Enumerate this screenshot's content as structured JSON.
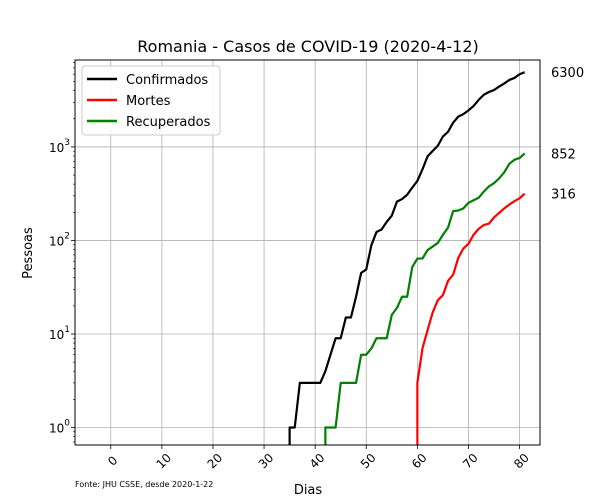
{
  "chart_data": {
    "type": "line",
    "title": "Romania - Casos de COVID-19 (2020-4-12)",
    "xlabel": "Dias",
    "ylabel": "Pessoas",
    "yscale": "log",
    "xlim": [
      -7,
      84
    ],
    "ylim": [
      0.65,
      8500
    ],
    "grid": true,
    "legend_position": "top-left",
    "footnote": "Fonte: JHU CSSE, desde 2020-1-22",
    "x_ticks": [
      0,
      10,
      20,
      30,
      40,
      50,
      60,
      70,
      80
    ],
    "y_ticks": [
      {
        "value": 1,
        "base": "10",
        "exp": "0"
      },
      {
        "value": 10,
        "base": "10",
        "exp": "1"
      },
      {
        "value": 100,
        "base": "10",
        "exp": "2"
      },
      {
        "value": 1000,
        "base": "10",
        "exp": "3"
      }
    ],
    "end_labels": [
      {
        "text": "6300",
        "value": 6300
      },
      {
        "text": "852",
        "value": 852
      },
      {
        "text": "316",
        "value": 316
      }
    ],
    "series": [
      {
        "name": "Confirmados",
        "color": "#000000",
        "x": [
          35,
          36,
          37,
          38,
          39,
          40,
          41,
          42,
          43,
          44,
          45,
          46,
          47,
          48,
          49,
          50,
          51,
          52,
          53,
          54,
          55,
          56,
          57,
          58,
          59,
          60,
          61,
          62,
          63,
          64,
          65,
          66,
          67,
          68,
          69,
          70,
          71,
          72,
          73,
          74,
          75,
          76,
          77,
          78,
          79,
          80,
          81
        ],
        "y": [
          1,
          1,
          3,
          3,
          3,
          3,
          3,
          4,
          6,
          9,
          9,
          15,
          15,
          25,
          45,
          49,
          89,
          123,
          131,
          158,
          184,
          260,
          277,
          308,
          367,
          433,
          576,
          794,
          906,
          1029,
          1292,
          1452,
          1815,
          2109,
          2245,
          2460,
          2738,
          3183,
          3613,
          3864,
          4057,
          4417,
          4761,
          5202,
          5467,
          5990,
          6300
        ]
      },
      {
        "name": "Mortes",
        "color": "#ff0000",
        "x": [
          60,
          61,
          62,
          63,
          64,
          65,
          66,
          67,
          68,
          69,
          70,
          71,
          72,
          73,
          74,
          75,
          76,
          77,
          78,
          79,
          80,
          81
        ],
        "y": [
          3,
          7,
          11,
          17,
          23,
          26,
          37,
          43,
          65,
          82,
          92,
          115,
          133,
          146,
          151,
          176,
          197,
          220,
          242,
          263,
          282,
          316
        ]
      },
      {
        "name": "Recuperados",
        "color": "#008000",
        "x": [
          42,
          43,
          44,
          45,
          46,
          47,
          48,
          49,
          50,
          51,
          52,
          53,
          54,
          55,
          56,
          57,
          58,
          59,
          60,
          61,
          62,
          63,
          64,
          65,
          66,
          67,
          68,
          69,
          70,
          71,
          72,
          73,
          74,
          75,
          76,
          77,
          78,
          79,
          80,
          81
        ],
        "y": [
          1,
          1,
          1,
          3,
          3,
          3,
          3,
          6,
          6,
          7,
          9,
          9,
          9,
          16,
          19,
          25,
          25,
          52,
          64,
          64,
          79,
          86,
          94,
          115,
          137,
          206,
          209,
          220,
          252,
          269,
          286,
          333,
          378,
          410,
          460,
          535,
          660,
          730,
          760,
          852
        ]
      }
    ]
  }
}
